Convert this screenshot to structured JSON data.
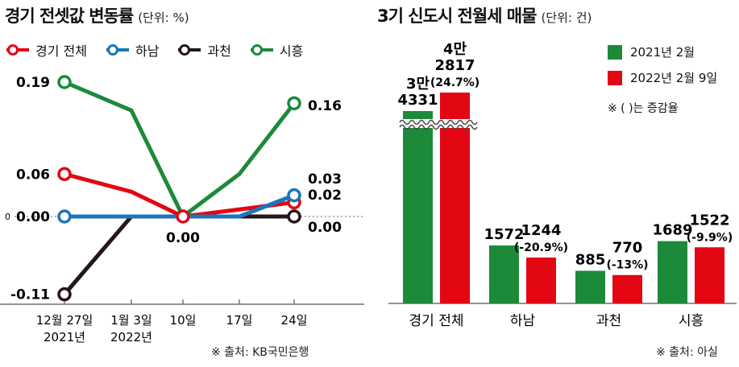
{
  "left": {
    "title": "경기 전셋값 변동률",
    "unit": "(단위: %)",
    "source": "※ 출처: KB국민은행",
    "zero_marker": "0",
    "legend": [
      {
        "name": "경기 전체",
        "color": "#e30613"
      },
      {
        "name": "하남",
        "color": "#1b75bb"
      },
      {
        "name": "과천",
        "color": "#231815"
      },
      {
        "name": "시흥",
        "color": "#1d8a3a"
      }
    ]
  },
  "right": {
    "title": "3기 신도시 전월세 매물",
    "unit": "(단위: 건)",
    "source": "※ 출처: 아실",
    "note": "※ (   )는 증감율",
    "legend": [
      {
        "name": "2021년 2월",
        "color": "#1d8a3a"
      },
      {
        "name": "2022년 2월 9일",
        "color": "#e30613"
      }
    ]
  },
  "chart_data": [
    {
      "type": "line",
      "title": "경기 전셋값 변동률",
      "unit": "(단위: %)",
      "x_ticks": [
        {
          "line1": "12월 27일",
          "line2": "2021년"
        },
        {
          "line1": "1월 3일",
          "line2": "2022년"
        },
        {
          "line1": "10일",
          "line2": ""
        },
        {
          "line1": "17일",
          "line2": ""
        },
        {
          "line1": "24일",
          "line2": ""
        }
      ],
      "ylim": [
        -0.11,
        0.19
      ],
      "series": [
        {
          "name": "경기 전체",
          "color": "#e30613",
          "values": [
            0.06,
            0.035,
            0.0,
            0.01,
            0.02
          ],
          "start_label": "0.06",
          "end_label": "0.02"
        },
        {
          "name": "하남",
          "color": "#1b75bb",
          "values": [
            0.0,
            0.0,
            0.0,
            0.0,
            0.03
          ],
          "start_label": "0.00",
          "end_label": "0.03"
        },
        {
          "name": "과천",
          "color": "#231815",
          "values": [
            -0.11,
            0.0,
            0.0,
            0.0,
            0.0
          ],
          "start_label": "-0.11",
          "end_label": "0.00"
        },
        {
          "name": "시흥",
          "color": "#1d8a3a",
          "values": [
            0.19,
            0.15,
            0.0,
            0.06,
            0.16
          ],
          "start_label": "0.19",
          "end_label": "0.16"
        }
      ],
      "annotations": [
        {
          "text": "0.00",
          "x_index": 2,
          "y": 0.0
        }
      ]
    },
    {
      "type": "bar",
      "title": "3기 신도시 전월세 매물",
      "unit": "(단위: 건)",
      "categories": [
        "경기 전체",
        "하남",
        "과천",
        "시흥"
      ],
      "series": [
        {
          "name": "2021년 2월",
          "color": "#1d8a3a",
          "values": [
            34331,
            1572,
            885,
            1689
          ],
          "labels": [
            "3만\n4331",
            "1572",
            "885",
            "1689"
          ]
        },
        {
          "name": "2022년 2월 9일",
          "color": "#e30613",
          "values": [
            42817,
            1244,
            770,
            1522
          ],
          "labels": [
            "4만\n2817\n(24.7%)",
            "1244\n(-20.9%)",
            "770\n(-13%)",
            "1522\n(-9.9%)"
          ]
        }
      ],
      "change_pct": [
        24.7,
        -20.9,
        -13,
        -9.9
      ],
      "axis_break": true
    }
  ]
}
